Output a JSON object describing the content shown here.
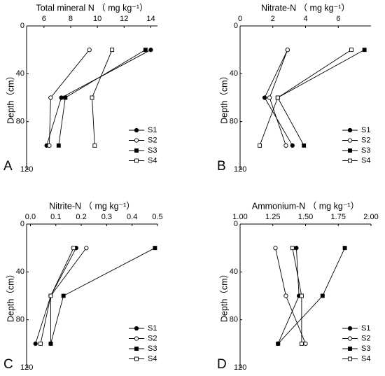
{
  "chart_data": [
    {
      "type": "line",
      "panel_label": "A",
      "title": "Total mineral N （ mg kg⁻¹）",
      "y_label": "Depth（cm）",
      "xlim": [
        4.7,
        14.5
      ],
      "xticks": [
        6,
        8,
        10,
        12,
        14
      ],
      "ylim": [
        0,
        120
      ],
      "yticks": [
        0,
        40,
        80,
        120
      ],
      "invert_y": true,
      "y": [
        20,
        60,
        100
      ],
      "series": [
        {
          "name": "S1",
          "color": "#000000",
          "marker": "circle",
          "marker_fill": "#000000",
          "values": [
            14.0,
            7.3,
            6.2
          ]
        },
        {
          "name": "S2",
          "color": "#000000",
          "marker": "circle",
          "marker_fill": "#ffffff",
          "values": [
            9.4,
            6.5,
            6.4
          ]
        },
        {
          "name": "S3",
          "color": "#000000",
          "marker": "square",
          "marker_fill": "#000000",
          "values": [
            13.6,
            7.6,
            7.1
          ]
        },
        {
          "name": "S4",
          "color": "#000000",
          "marker": "square",
          "marker_fill": "#ffffff",
          "values": [
            11.1,
            9.6,
            9.8
          ]
        }
      ]
    },
    {
      "type": "line",
      "panel_label": "B",
      "title": "Nitrate-N （ mg kg⁻¹）",
      "y_label": "Depth（cm）",
      "xlim": [
        0,
        8
      ],
      "xticks": [
        0,
        2,
        4,
        6
      ],
      "ylim": [
        0,
        120
      ],
      "yticks": [
        0,
        40,
        80,
        120
      ],
      "invert_y": true,
      "y": [
        20,
        60,
        100
      ],
      "series": [
        {
          "name": "S1",
          "color": "#000000",
          "marker": "circle",
          "marker_fill": "#000000",
          "values": [
            2.9,
            1.5,
            3.2
          ]
        },
        {
          "name": "S2",
          "color": "#000000",
          "marker": "circle",
          "marker_fill": "#ffffff",
          "values": [
            2.9,
            1.8,
            2.8
          ]
        },
        {
          "name": "S3",
          "color": "#000000",
          "marker": "square",
          "marker_fill": "#000000",
          "values": [
            7.6,
            2.3,
            3.9
          ]
        },
        {
          "name": "S4",
          "color": "#000000",
          "marker": "square",
          "marker_fill": "#ffffff",
          "values": [
            6.8,
            2.3,
            1.2
          ]
        }
      ]
    },
    {
      "type": "line",
      "panel_label": "C",
      "title": "Nitrite-N （ mg kg⁻¹）",
      "y_label": "Depth（cm）",
      "xlim": [
        -0.015,
        0.5
      ],
      "xticks": [
        {
          "value": 0,
          "label": "0.0"
        },
        0.1,
        0.2,
        0.3,
        0.4,
        0.5
      ],
      "ylim": [
        0,
        120
      ],
      "yticks": [
        0,
        40,
        80,
        120
      ],
      "invert_y": true,
      "y": [
        20,
        60,
        100
      ],
      "series": [
        {
          "name": "S1",
          "color": "#000000",
          "marker": "circle",
          "marker_fill": "#000000",
          "values": [
            0.18,
            0.08,
            0.02
          ]
        },
        {
          "name": "S2",
          "color": "#000000",
          "marker": "circle",
          "marker_fill": "#ffffff",
          "values": [
            0.22,
            0.08,
            0.08
          ]
        },
        {
          "name": "S3",
          "color": "#000000",
          "marker": "square",
          "marker_fill": "#000000",
          "values": [
            0.49,
            0.13,
            0.08
          ]
        },
        {
          "name": "S4",
          "color": "#000000",
          "marker": "square",
          "marker_fill": "#ffffff",
          "values": [
            0.17,
            0.08,
            0.04
          ]
        }
      ]
    },
    {
      "type": "line",
      "panel_label": "D",
      "title": "Ammonium-N （ mg kg⁻¹）",
      "y_label": "Depth（cm）",
      "xlim": [
        1,
        2
      ],
      "xticks": [
        {
          "value": 1,
          "label": "1.00"
        },
        1.25,
        {
          "value": 1.5,
          "label": "1.50"
        },
        1.75,
        {
          "value": 2,
          "label": "2.00"
        }
      ],
      "ylim": [
        0,
        120
      ],
      "yticks": [
        0,
        40,
        80,
        120
      ],
      "invert_y": true,
      "y": [
        20,
        60,
        100
      ],
      "series": [
        {
          "name": "S1",
          "color": "#000000",
          "marker": "circle",
          "marker_fill": "#000000",
          "values": [
            1.43,
            1.45,
            1.29
          ]
        },
        {
          "name": "S2",
          "color": "#000000",
          "marker": "circle",
          "marker_fill": "#ffffff",
          "values": [
            1.27,
            1.35,
            1.5
          ]
        },
        {
          "name": "S3",
          "color": "#000000",
          "marker": "square",
          "marker_fill": "#000000",
          "values": [
            1.8,
            1.63,
            1.29
          ]
        },
        {
          "name": "S4",
          "color": "#000000",
          "marker": "square",
          "marker_fill": "#ffffff",
          "values": [
            1.4,
            1.47,
            1.47
          ]
        }
      ]
    }
  ]
}
